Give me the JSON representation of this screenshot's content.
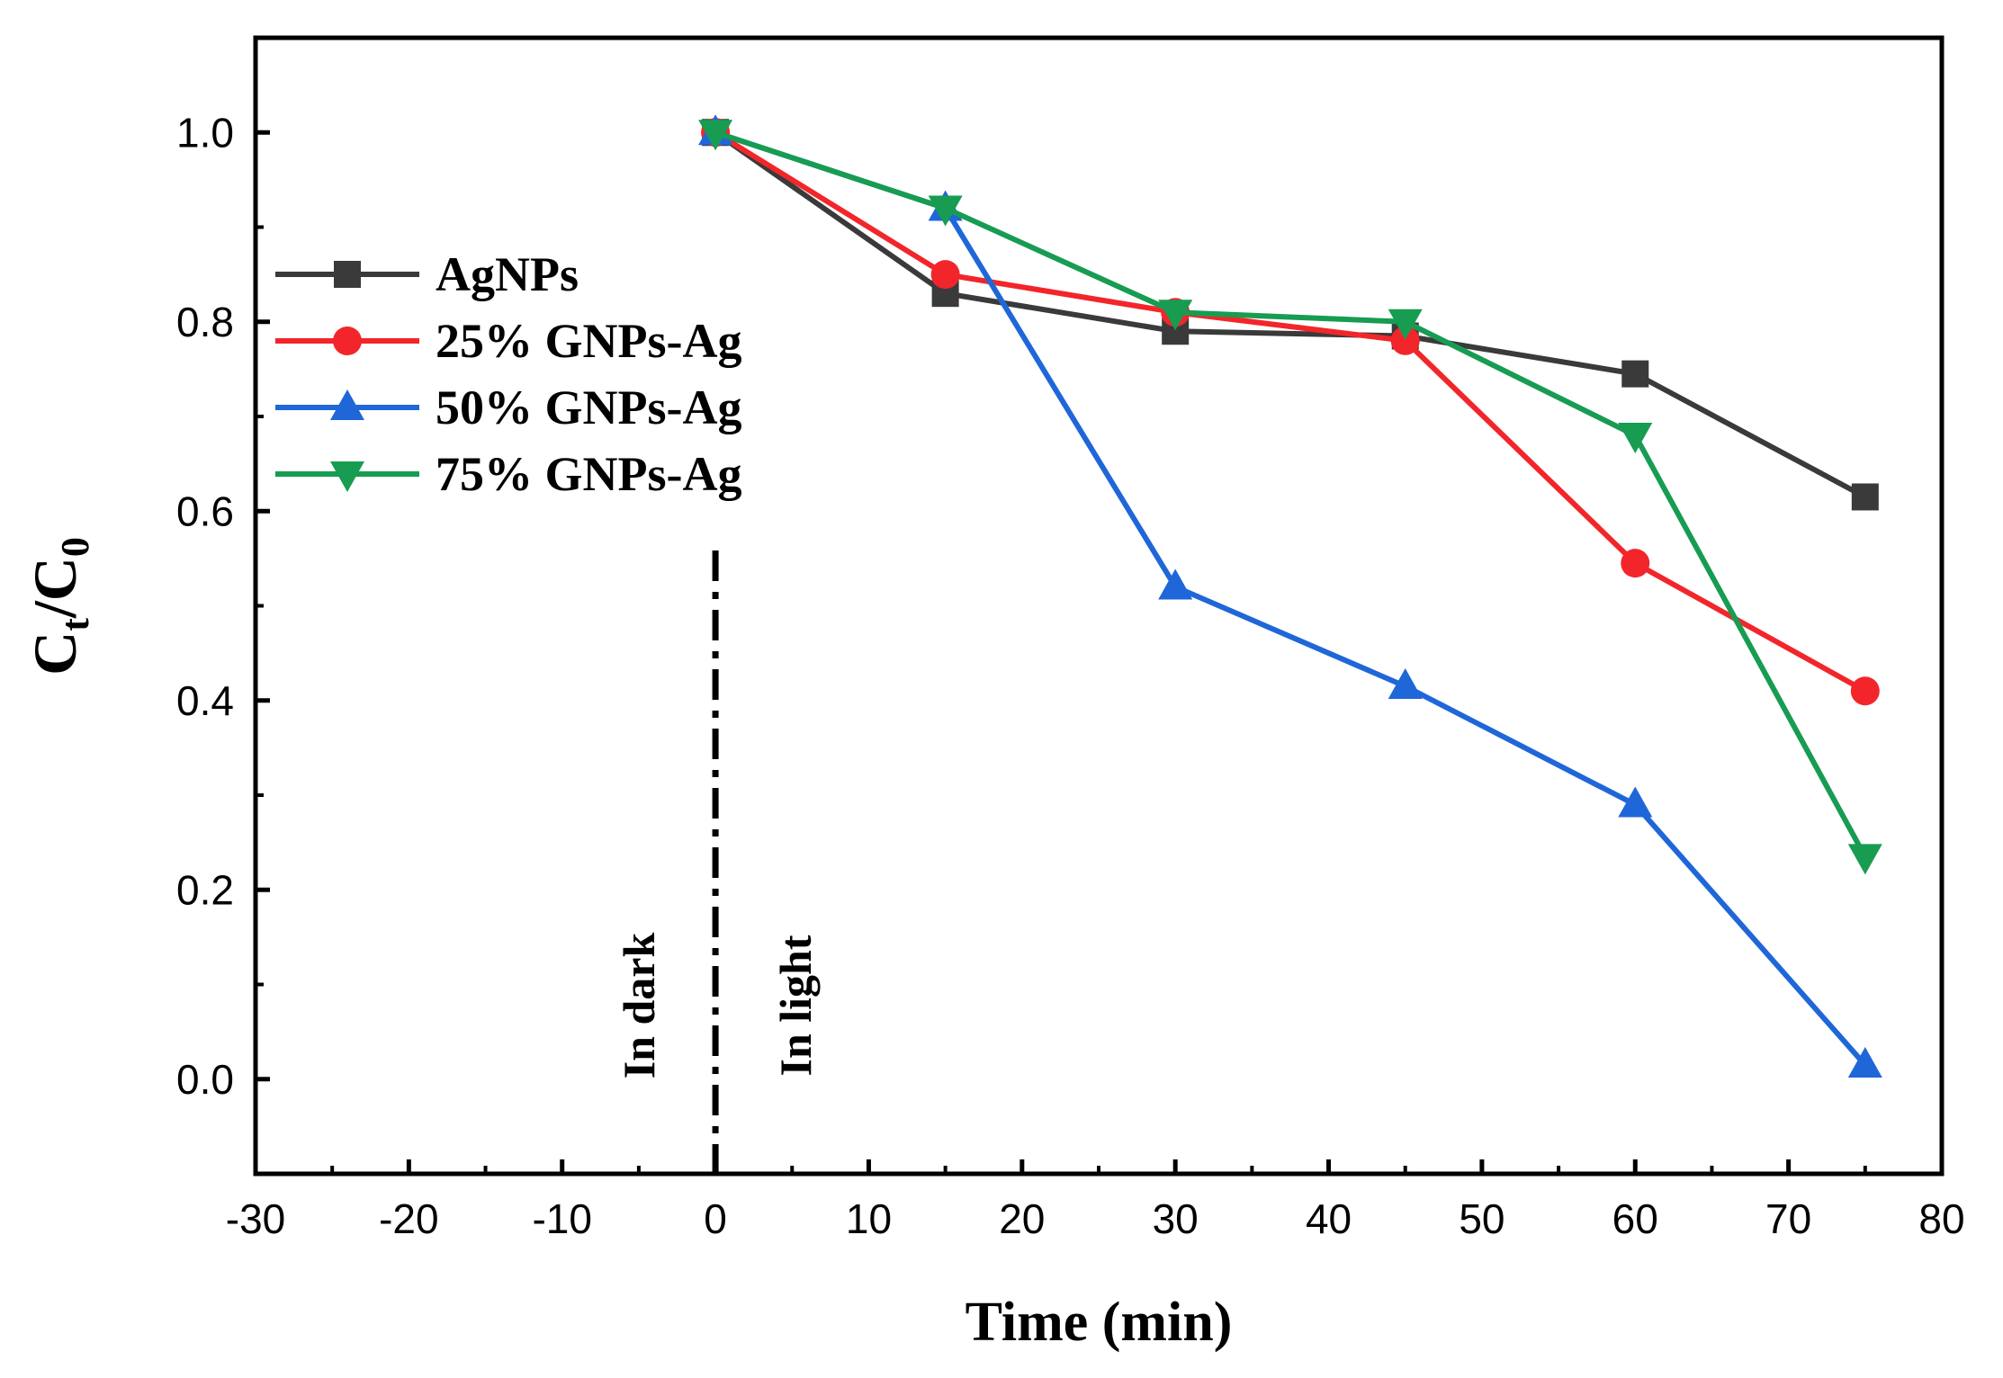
{
  "chart_data": {
    "type": "line",
    "title": "",
    "xlabel": "Time (min)",
    "ylabel_main": "C",
    "ylabel_sub1": "t",
    "ylabel_slash": "/C",
    "ylabel_sub2": "0",
    "xlim": [
      -30,
      80
    ],
    "ylim": [
      -0.1,
      1.1
    ],
    "xticks": [
      -30,
      -20,
      -10,
      0,
      10,
      20,
      30,
      40,
      50,
      60,
      70,
      80
    ],
    "xtick_labels": [
      "-30",
      "-20",
      "-10",
      "0",
      "10",
      "20",
      "30",
      "40",
      "50",
      "60",
      "70",
      "80"
    ],
    "yticks": [
      0.0,
      0.2,
      0.4,
      0.6,
      0.8,
      1.0
    ],
    "ytick_labels": [
      "0.0",
      "0.2",
      "0.4",
      "0.6",
      "0.8",
      "1.0"
    ],
    "grid": false,
    "legend_position": "upper-left",
    "x": [
      0,
      15,
      30,
      45,
      60,
      75
    ],
    "series": [
      {
        "name": "AgNPs",
        "color": "#3a3a3a",
        "marker": "square",
        "values": [
          1.0,
          0.83,
          0.79,
          0.785,
          0.745,
          0.615
        ]
      },
      {
        "name": "25% GNPs-Ag",
        "color": "#f2262a",
        "marker": "circle",
        "values": [
          1.0,
          0.85,
          0.81,
          0.78,
          0.545,
          0.41
        ]
      },
      {
        "name": "50% GNPs-Ag",
        "color": "#1f67d8",
        "marker": "triangle-up",
        "values": [
          1.0,
          0.92,
          0.52,
          0.415,
          0.29,
          0.015
        ]
      },
      {
        "name": "75% GNPs-Ag",
        "color": "#179c52",
        "marker": "triangle-down",
        "values": [
          1.0,
          0.92,
          0.81,
          0.8,
          0.68,
          0.235
        ]
      }
    ],
    "annotations": {
      "divider_x": 0,
      "left_text": "In dark",
      "right_text": "In light"
    }
  }
}
